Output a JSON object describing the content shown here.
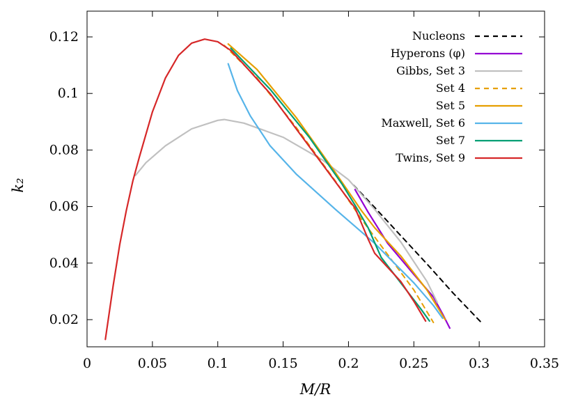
{
  "chart_data": {
    "type": "line",
    "title": "",
    "xlabel": "M/R",
    "ylabel": "k₂",
    "xlim": [
      0,
      0.35
    ],
    "ylim": [
      0.01,
      0.125
    ],
    "grid": false,
    "legend_position": "top-right",
    "x_ticks": [
      0,
      0.05,
      0.1,
      0.15,
      0.2,
      0.25,
      0.3,
      0.35
    ],
    "x_tick_labels": [
      "0",
      "0.05",
      "0.1",
      "0.15",
      "0.2",
      "0.25",
      "0.3",
      "0.35"
    ],
    "y_ticks": [
      0.02,
      0.04,
      0.06,
      0.08,
      0.1,
      0.12
    ],
    "y_tick_labels": [
      "0.02",
      "0.04",
      "0.06",
      "0.08",
      "0.1",
      "0.12"
    ],
    "series": [
      {
        "name": "Nucleons",
        "color": "#000000",
        "dashed": true,
        "x": [
          0.204,
          0.22,
          0.24,
          0.26,
          0.28,
          0.302
        ],
        "y": [
          0.0675,
          0.0597,
          0.0497,
          0.0397,
          0.0294,
          0.0188
        ]
      },
      {
        "name": "Hyperons (φ)",
        "color": "#9400d3",
        "dashed": false,
        "x": [
          0.205,
          0.215,
          0.23,
          0.25,
          0.265,
          0.272,
          0.2775
        ],
        "y": [
          0.066,
          0.058,
          0.047,
          0.036,
          0.028,
          0.022,
          0.017
        ]
      },
      {
        "name": "Gibbs, Set 3",
        "color": "#c0c0c0",
        "dashed": false,
        "x": [
          0.037,
          0.045,
          0.06,
          0.08,
          0.1,
          0.105,
          0.12,
          0.15,
          0.18,
          0.2,
          0.22,
          0.24,
          0.26,
          0.268
        ],
        "y": [
          0.071,
          0.0755,
          0.0815,
          0.0875,
          0.0905,
          0.0908,
          0.0895,
          0.0845,
          0.0765,
          0.0695,
          0.059,
          0.0475,
          0.0335,
          0.026
        ]
      },
      {
        "name": "Set 4",
        "color": "#e69f00",
        "dashed": true,
        "x": [
          0.105,
          0.13,
          0.16,
          0.19,
          0.21,
          0.23,
          0.25,
          0.265
        ],
        "y": [
          0.117,
          0.1055,
          0.088,
          0.069,
          0.0555,
          0.043,
          0.0305,
          0.019
        ]
      },
      {
        "name": "Set 5",
        "color": "#e69f00",
        "dashed": false,
        "x": [
          0.108,
          0.13,
          0.16,
          0.19,
          0.21,
          0.22,
          0.24,
          0.26,
          0.274
        ],
        "y": [
          0.1175,
          0.1085,
          0.0915,
          0.072,
          0.0585,
          0.0525,
          0.0425,
          0.0305,
          0.02
        ]
      },
      {
        "name": "Maxwell, Set 6",
        "color": "#56b4e9",
        "dashed": false,
        "x": [
          0.108,
          0.115,
          0.125,
          0.14,
          0.16,
          0.19,
          0.22,
          0.25,
          0.265,
          0.272
        ],
        "y": [
          0.1105,
          0.101,
          0.092,
          0.0815,
          0.0715,
          0.059,
          0.047,
          0.033,
          0.025,
          0.0205
        ]
      },
      {
        "name": "Set 7",
        "color": "#009e73",
        "dashed": false,
        "x": [
          0.11,
          0.14,
          0.17,
          0.195,
          0.205,
          0.215,
          0.225,
          0.24,
          0.255,
          0.262
        ],
        "y": [
          0.116,
          0.1015,
          0.0845,
          0.068,
          0.0605,
          0.0525,
          0.042,
          0.033,
          0.024,
          0.0195
        ]
      },
      {
        "name": "Twins, Set 9",
        "color": "#d62728",
        "dashed": false,
        "x": [
          0.014,
          0.02,
          0.025,
          0.03,
          0.035,
          0.04,
          0.05,
          0.06,
          0.07,
          0.08,
          0.09,
          0.1,
          0.11,
          0.12,
          0.14,
          0.16,
          0.18,
          0.2,
          0.205,
          0.21,
          0.215,
          0.22,
          0.23,
          0.24,
          0.25,
          0.259
        ],
        "y": [
          0.013,
          0.032,
          0.0465,
          0.0585,
          0.069,
          0.0775,
          0.0935,
          0.1055,
          0.1135,
          0.1178,
          0.1192,
          0.1183,
          0.1152,
          0.1102,
          0.1,
          0.0875,
          0.075,
          0.0625,
          0.0595,
          0.054,
          0.0485,
          0.0435,
          0.0385,
          0.0335,
          0.0265,
          0.0195
        ]
      }
    ]
  }
}
